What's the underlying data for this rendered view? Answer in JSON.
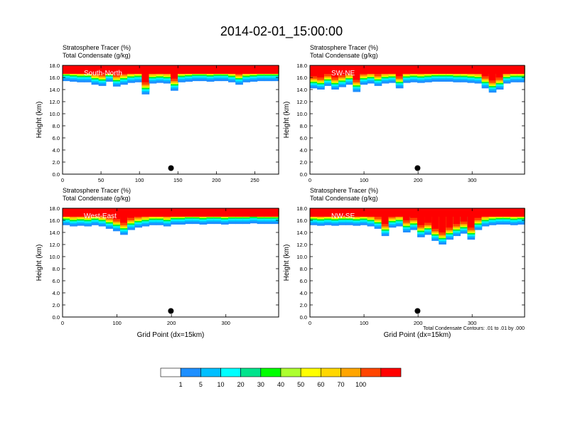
{
  "title": "2014-02-01_15:00:00",
  "panel_label_line1": "Stratosphere Tracer   (%)",
  "panel_label_line2": "Total Condensate   (g/kg)",
  "contour_note": "Total Condensate Contours: .01 to .01 by .000",
  "colorbar": {
    "labels": [
      "1",
      "5",
      "10",
      "20",
      "30",
      "40",
      "50",
      "60",
      "70",
      "100"
    ],
    "colors": [
      "#ffffff",
      "#1e8fff",
      "#00bfff",
      "#00ffff",
      "#00e38c",
      "#00ff00",
      "#adff2f",
      "#ffff00",
      "#ffd700",
      "#ffa500",
      "#ff4500",
      "#ff0000"
    ]
  },
  "chart_data": [
    {
      "type": "heatmap",
      "name": "South-North",
      "xlabel": "",
      "ylabel": "Height (km)",
      "xlim": [
        0,
        281
      ],
      "ylim": [
        0,
        18
      ],
      "xticks": [
        "0",
        "50",
        "100",
        "150",
        "200",
        "250"
      ],
      "xtick_values": [
        0,
        50,
        100,
        150,
        200,
        250
      ],
      "yticks": [
        "0.0",
        "2.0",
        "4.0",
        "6.0",
        "8.0",
        "10.0",
        "12.0",
        "14.0",
        "16.0",
        "18.0"
      ],
      "marker_x": 141,
      "marker_height": 1.0,
      "tracer_base_km": [
        15.4,
        15.3,
        15.2,
        15.2,
        14.8,
        14.6,
        15.3,
        14.5,
        14.8,
        15.1,
        15.2,
        13.2,
        15.0,
        15.1,
        15.0,
        13.8,
        15.2,
        15.3,
        15.4,
        15.4,
        15.3,
        15.4,
        15.4,
        15.2,
        14.8,
        15.2,
        15.3,
        15.4,
        15.4,
        15.4
      ]
    },
    {
      "type": "heatmap",
      "name": "SW-NE",
      "xlabel": "",
      "ylabel": "Height (km)",
      "xlim": [
        0,
        397
      ],
      "ylim": [
        0,
        18
      ],
      "xticks": [
        "0",
        "100",
        "200",
        "300"
      ],
      "xtick_values": [
        0,
        100,
        200,
        300
      ],
      "yticks": [
        "0.0",
        "2.0",
        "4.0",
        "6.0",
        "8.0",
        "10.0",
        "12.0",
        "14.0",
        "16.0",
        "18.0"
      ],
      "marker_x": 199,
      "marker_height": 1.0,
      "tracer_base_km": [
        14.2,
        14.0,
        14.6,
        14.0,
        14.4,
        14.8,
        13.6,
        14.8,
        15.0,
        14.6,
        15.0,
        15.1,
        14.2,
        15.1,
        15.2,
        15.1,
        15.2,
        15.3,
        15.3,
        15.3,
        15.2,
        15.2,
        15.1,
        15.0,
        14.2,
        13.5,
        14.0,
        15.0,
        15.2,
        15.2
      ]
    },
    {
      "type": "heatmap",
      "name": "West-East",
      "xlabel": "Grid Point (dx=15km)",
      "ylabel": "Height (km)",
      "xlim": [
        0,
        397
      ],
      "ylim": [
        0,
        18
      ],
      "xticks": [
        "0",
        "100",
        "200",
        "300"
      ],
      "xtick_values": [
        0,
        100,
        200,
        300
      ],
      "yticks": [
        "0.0",
        "2.0",
        "4.0",
        "6.0",
        "8.0",
        "10.0",
        "12.0",
        "14.0",
        "16.0",
        "18.0"
      ],
      "marker_x": 199,
      "marker_height": 1.0,
      "tracer_base_km": [
        15.2,
        15.0,
        15.1,
        15.0,
        15.2,
        15.0,
        14.6,
        14.2,
        13.6,
        14.4,
        14.8,
        15.0,
        15.2,
        15.2,
        15.0,
        15.3,
        15.3,
        15.4,
        15.4,
        15.3,
        15.4,
        15.4,
        15.3,
        15.4,
        15.4,
        15.4,
        15.5,
        15.4,
        15.4,
        15.4
      ]
    },
    {
      "type": "heatmap",
      "name": "NW-SE",
      "xlabel": "Grid Point (dx=15km)",
      "ylabel": "Height (km)",
      "xlim": [
        0,
        397
      ],
      "ylim": [
        0,
        18
      ],
      "xticks": [
        "0",
        "100",
        "200",
        "300"
      ],
      "xtick_values": [
        0,
        100,
        200,
        300
      ],
      "yticks": [
        "0.0",
        "2.0",
        "4.0",
        "6.0",
        "8.0",
        "10.0",
        "12.0",
        "14.0",
        "16.0",
        "18.0"
      ],
      "marker_x": 199,
      "marker_height": 1.0,
      "tracer_base_km": [
        15.2,
        15.1,
        15.2,
        15.1,
        15.2,
        15.2,
        15.1,
        15.2,
        15.0,
        14.6,
        13.4,
        14.8,
        15.0,
        14.0,
        14.4,
        13.2,
        13.6,
        12.6,
        12.0,
        12.8,
        13.4,
        13.8,
        12.8,
        14.4,
        15.0,
        15.2,
        15.3,
        15.3,
        15.2,
        15.3
      ]
    }
  ]
}
